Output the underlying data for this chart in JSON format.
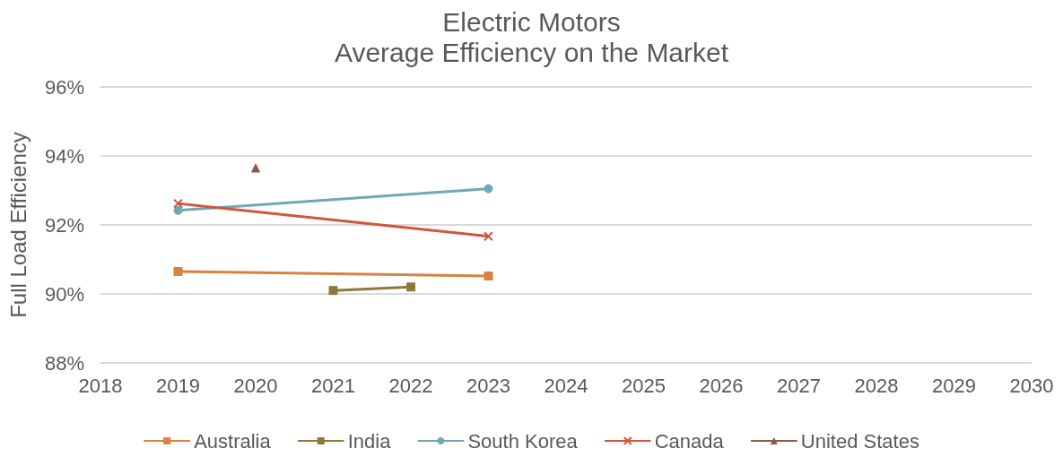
{
  "chart_data": {
    "type": "line",
    "title": "Electric Motors",
    "subtitle": "Average Efficiency on the Market",
    "ylabel": "Full Load Efficiency",
    "xlim": [
      2018,
      2030
    ],
    "xticks": [
      2018,
      2019,
      2020,
      2021,
      2022,
      2023,
      2024,
      2025,
      2026,
      2027,
      2028,
      2029,
      2030
    ],
    "ylim": [
      88,
      96
    ],
    "yticks": [
      {
        "value": 88,
        "label": "88%"
      },
      {
        "value": 90,
        "label": "90%"
      },
      {
        "value": 92,
        "label": "92%"
      },
      {
        "value": 94,
        "label": "94%"
      },
      {
        "value": 96,
        "label": "96%"
      }
    ],
    "grid": "y",
    "legend": "bottom",
    "line_style": "solid",
    "series": [
      {
        "name": "Australia",
        "color": "#d9813f",
        "marker": "square",
        "x": [
          2019,
          2023
        ],
        "values": [
          90.65,
          90.52
        ]
      },
      {
        "name": "India",
        "color": "#8b7a3a",
        "marker": "square",
        "x": [
          2021,
          2022
        ],
        "values": [
          90.1,
          90.2
        ]
      },
      {
        "name": "South Korea",
        "color": "#6fa8b4",
        "marker": "circle",
        "x": [
          2019,
          2023
        ],
        "values": [
          92.42,
          93.05
        ]
      },
      {
        "name": "Canada",
        "color": "#d2553a",
        "marker": "cross",
        "x": [
          2019,
          2023
        ],
        "values": [
          92.62,
          91.67
        ]
      },
      {
        "name": "United States",
        "color": "#8a5a4c",
        "marker": "triangle",
        "x": [
          2020
        ],
        "values": [
          93.65
        ]
      }
    ]
  }
}
